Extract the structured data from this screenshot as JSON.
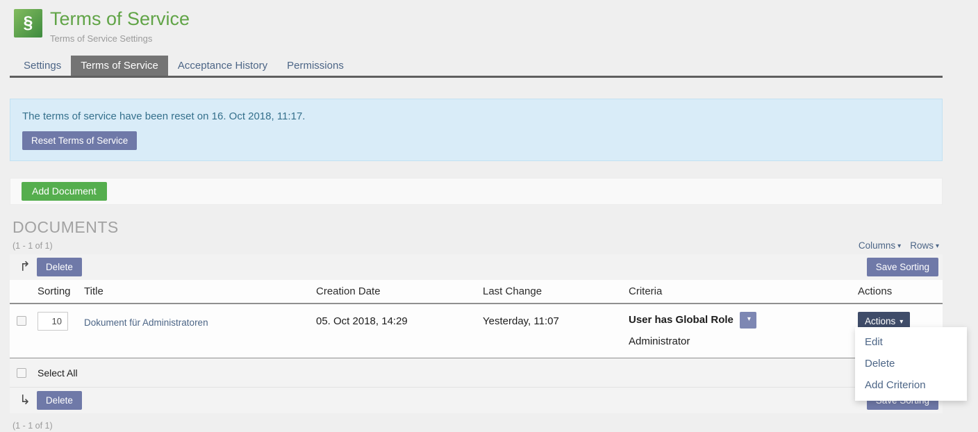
{
  "header": {
    "icon_glyph": "§",
    "title": "Terms of Service",
    "subtitle": "Terms of Service Settings"
  },
  "tabs": {
    "items": [
      {
        "label": "Settings"
      },
      {
        "label": "Terms of Service"
      },
      {
        "label": "Acceptance History"
      },
      {
        "label": "Permissions"
      }
    ],
    "active": "Terms of Service"
  },
  "info_box": {
    "message": "The terms of service have been reset on 16. Oct 2018, 11:17.",
    "reset_button": "Reset Terms of Service"
  },
  "actions_toolbar": {
    "add_document": "Add Document"
  },
  "documents": {
    "section_title": "DOCUMENTS",
    "range_top": "(1 - 1 of 1)",
    "range_bottom": "(1 - 1 of 1)",
    "columns_control": "Columns",
    "rows_control": "Rows",
    "toolbar": {
      "delete": "Delete",
      "save_sorting": "Save Sorting"
    },
    "headers": {
      "sorting": "Sorting",
      "title": "Title",
      "creation_date": "Creation Date",
      "last_change": "Last Change",
      "criteria": "Criteria",
      "actions": "Actions"
    },
    "row": {
      "sorting_value": "10",
      "title": "Dokument für Administratoren",
      "creation_date": "05. Oct 2018, 14:29",
      "last_change": "Yesterday, 11:07",
      "criterion": "User has Global Role",
      "criterion_detail": "Administrator",
      "actions_button": "Actions"
    },
    "select_all": "Select All"
  },
  "actions_menu": {
    "items": [
      "Edit",
      "Delete",
      "Add Criterion"
    ]
  },
  "icons": {
    "caret_down": "▾",
    "arrow_up_right": "↱",
    "arrow_down_right": "↳"
  },
  "colors": {
    "page_bg": "#efefef",
    "accent_green": "#61a447",
    "button_green": "#55ae4e",
    "button_purple": "#6f79a8",
    "button_dark": "#3f4c69",
    "link": "#4c6586",
    "info_bg": "#d9ecf8",
    "active_tab_bg": "#747474"
  }
}
